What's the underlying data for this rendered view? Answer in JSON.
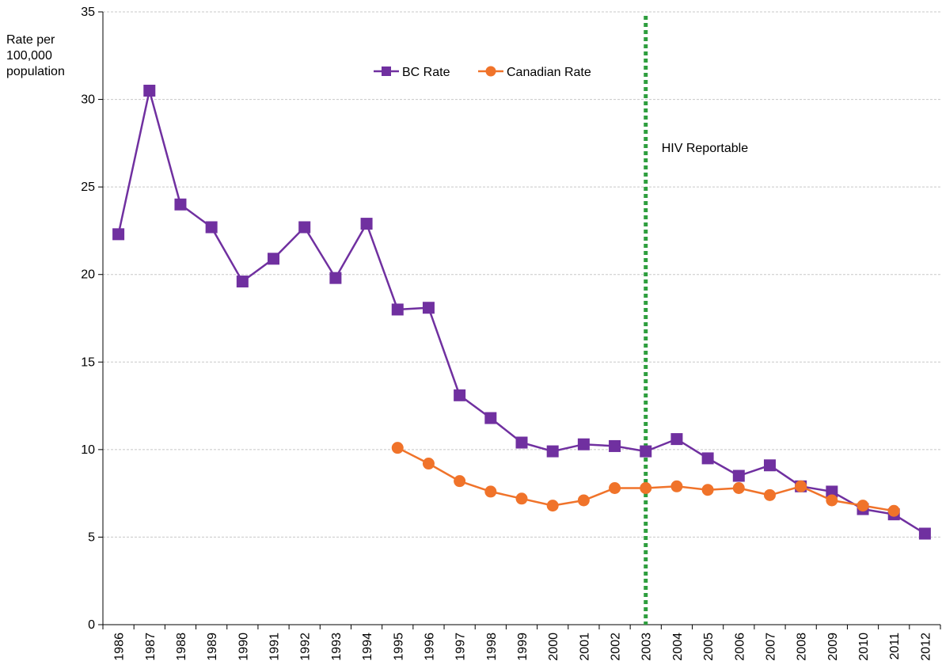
{
  "chart_data": {
    "type": "line",
    "title": "",
    "ylabel": "Rate per\n100,000\npopulation",
    "xlabel": "",
    "categories": [
      "1986",
      "1987",
      "1988",
      "1989",
      "1990",
      "1991",
      "1992",
      "1993",
      "1994",
      "1995",
      "1996",
      "1997",
      "1998",
      "1999",
      "2000",
      "2001",
      "2002",
      "2003",
      "2004",
      "2005",
      "2006",
      "2007",
      "2008",
      "2009",
      "2010",
      "2011",
      "2012"
    ],
    "ylim": [
      0,
      35
    ],
    "yticks": [
      0,
      5,
      10,
      15,
      20,
      25,
      30,
      35
    ],
    "grid": true,
    "legend_position": "top-center",
    "series": [
      {
        "name": "BC Rate",
        "color": "#7030a0",
        "marker": "square",
        "values": [
          22.3,
          30.5,
          24.0,
          22.7,
          19.6,
          20.9,
          22.7,
          19.8,
          22.9,
          18.0,
          18.1,
          13.1,
          11.8,
          10.4,
          9.9,
          10.3,
          10.2,
          9.9,
          10.6,
          9.5,
          8.5,
          9.1,
          7.9,
          7.6,
          6.6,
          6.3,
          5.2
        ]
      },
      {
        "name": "Canadian Rate",
        "color": "#f0732a",
        "marker": "circle",
        "values": [
          null,
          null,
          null,
          null,
          null,
          null,
          null,
          null,
          null,
          10.1,
          9.2,
          8.2,
          7.6,
          7.2,
          6.8,
          7.1,
          7.8,
          7.8,
          7.9,
          7.7,
          7.8,
          7.4,
          7.9,
          7.1,
          6.8,
          6.5,
          null
        ]
      }
    ],
    "annotations": [
      {
        "text": "HIV Reportable",
        "x": "2003",
        "style": "dotted-vertical-line",
        "color": "#2e9e3e"
      }
    ]
  }
}
